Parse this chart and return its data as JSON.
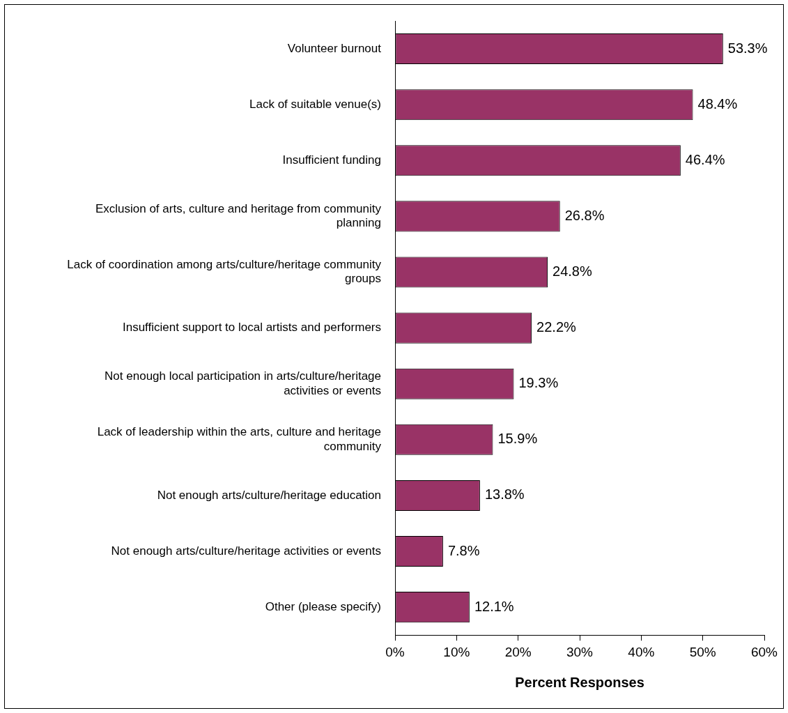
{
  "chart_data": {
    "type": "bar",
    "orientation": "horizontal",
    "xlabel": "Percent Responses",
    "categories": [
      "Volunteer burnout",
      "Lack of suitable venue(s)",
      "Insufficient funding",
      "Exclusion of arts, culture and heritage from community planning",
      "Lack of coordination among arts/culture/heritage community groups",
      "Insufficient support to local artists and performers",
      "Not enough local participation in arts/culture/heritage activities or events",
      "Lack of leadership within the arts, culture and heritage community",
      "Not enough arts/culture/heritage education",
      "Not enough arts/culture/heritage activities or events",
      "Other (please specify)"
    ],
    "values": [
      53.3,
      48.4,
      46.4,
      26.8,
      24.8,
      22.2,
      19.3,
      15.9,
      13.8,
      7.8,
      12.1
    ],
    "value_labels": [
      "53.3%",
      "48.4%",
      "46.4%",
      "26.8%",
      "24.8%",
      "22.2%",
      "19.3%",
      "15.9%",
      "13.8%",
      "7.8%",
      "12.1%"
    ],
    "color": "#993366",
    "xlim": [
      0,
      60
    ],
    "xticks": [
      {
        "value": 0,
        "label": "0%"
      },
      {
        "value": 10,
        "label": "10%"
      },
      {
        "value": 20,
        "label": "20%"
      },
      {
        "value": 30,
        "label": "30%"
      },
      {
        "value": 40,
        "label": "40%"
      },
      {
        "value": 50,
        "label": "50%"
      },
      {
        "value": 60,
        "label": "60%"
      }
    ],
    "legend": false
  }
}
